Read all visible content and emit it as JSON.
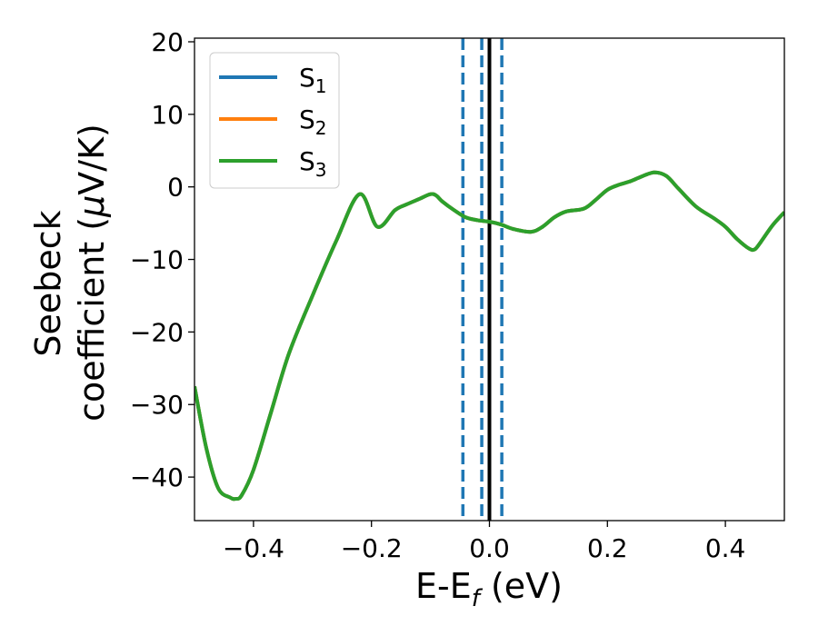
{
  "chart_data": {
    "type": "line",
    "xlabel": "E-E_f (eV)",
    "ylabel": "Seebeck coefficient  (μV/K)",
    "xlabel_parts": {
      "main": "E-E",
      "sub": "f",
      "tail": " (eV)"
    },
    "ylabel_parts": {
      "line1": "Seebeck",
      "line2": "coefficient  (",
      "mu": "μ",
      "tail": "V/K)"
    },
    "xlim": [
      -0.5,
      0.5
    ],
    "ylim": [
      -46,
      20.5
    ],
    "x_ticks": [
      -0.4,
      -0.2,
      0.0,
      0.2,
      0.4
    ],
    "x_tick_labels": [
      "−0.4",
      "−0.2",
      "0.0",
      "0.2",
      "0.4"
    ],
    "y_ticks": [
      20,
      10,
      0,
      -10,
      -20,
      -30,
      -40
    ],
    "y_tick_labels": [
      "20",
      "10",
      "0",
      "−10",
      "−20",
      "−30",
      "−40"
    ],
    "grid": false,
    "legend_position": "top-left",
    "series": [
      {
        "name": "S1",
        "label_main": "S",
        "label_sub": "1",
        "color": "#1f77b4"
      },
      {
        "name": "S2",
        "label_main": "S",
        "label_sub": "2",
        "color": "#ff7f0e"
      },
      {
        "name": "S3",
        "label_main": "S",
        "label_sub": "3",
        "color": "#2ca02c"
      }
    ],
    "curve": {
      "x": [
        -0.5,
        -0.48,
        -0.46,
        -0.44,
        -0.43,
        -0.42,
        -0.4,
        -0.37,
        -0.34,
        -0.3,
        -0.26,
        -0.22,
        -0.19,
        -0.16,
        -0.14,
        -0.12,
        -0.1,
        -0.09,
        -0.08,
        -0.06,
        -0.04,
        -0.02,
        0.0,
        0.02,
        0.04,
        0.07,
        0.09,
        0.11,
        0.13,
        0.16,
        0.18,
        0.2,
        0.22,
        0.24,
        0.26,
        0.28,
        0.3,
        0.32,
        0.35,
        0.38,
        0.4,
        0.42,
        0.44,
        0.45,
        0.46,
        0.48,
        0.5
      ],
      "y": [
        -27.5,
        -36,
        -41.5,
        -42.8,
        -43,
        -42.5,
        -39,
        -31,
        -23,
        -15,
        -7.5,
        -1,
        -5.5,
        -3.2,
        -2.4,
        -1.7,
        -1,
        -1.2,
        -2,
        -3.2,
        -4.2,
        -4.6,
        -4.8,
        -5.2,
        -5.8,
        -6.2,
        -5.5,
        -4.2,
        -3.4,
        -3,
        -1.8,
        -0.4,
        0.3,
        0.8,
        1.5,
        2,
        1.5,
        -0.2,
        -2.7,
        -4.3,
        -5.5,
        -7.2,
        -8.5,
        -8.6,
        -7.6,
        -5.3,
        -3.5
      ]
    },
    "vlines": [
      {
        "x": -0.045,
        "style": "dashed",
        "color": "#1f77b4"
      },
      {
        "x": -0.013,
        "style": "dashed",
        "color": "#1f77b4"
      },
      {
        "x": 0.0,
        "style": "solid",
        "color": "#000000"
      },
      {
        "x": 0.021,
        "style": "dashed",
        "color": "#1f77b4"
      }
    ]
  }
}
